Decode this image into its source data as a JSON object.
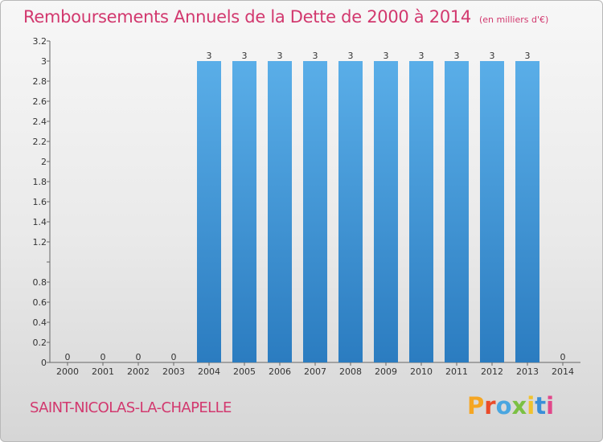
{
  "header": {
    "title": "Remboursements Annuels de la Dette de 2000 à 2014",
    "unit": "(en milliers d'€)"
  },
  "footer": {
    "commune": "SAINT-NICOLAS-LA-CHAPELLE",
    "logo_letters": [
      "P",
      "r",
      "o",
      "x",
      "i",
      "t",
      "i"
    ]
  },
  "chart_data": {
    "type": "bar",
    "title": "Remboursements Annuels de la Dette de 2000 à 2014",
    "subtitle": "(en milliers d'€)",
    "categories": [
      "2000",
      "2001",
      "2002",
      "2003",
      "2004",
      "2005",
      "2006",
      "2007",
      "2008",
      "2009",
      "2010",
      "2011",
      "2012",
      "2013",
      "2014"
    ],
    "values": [
      0,
      0,
      0,
      0,
      3,
      3,
      3,
      3,
      3,
      3,
      3,
      3,
      3,
      3,
      0
    ],
    "data_labels": [
      "0",
      "0",
      "0",
      "0",
      "3",
      "3",
      "3",
      "3",
      "3",
      "3",
      "3",
      "3",
      "3",
      "3",
      "0"
    ],
    "y_ticks": [
      0,
      0.2,
      0.4,
      0.6,
      0.8,
      1.0,
      1.2,
      1.4,
      1.6,
      1.8,
      2,
      2.2,
      2.4,
      2.6,
      2.8,
      3,
      3.2
    ],
    "y_tick_labels": [
      "0",
      "0.2",
      "0.4",
      "0.6",
      "0.8",
      "",
      "1.2",
      "1.4",
      "1.6",
      "1.8",
      "2",
      "2.2",
      "2.4",
      "2.6",
      "2.8",
      "3",
      "3.2"
    ],
    "ylim": [
      0,
      3.2
    ],
    "xlabel": "",
    "ylabel": "",
    "grid": false,
    "colors": {
      "bar_top": "#5aaee8",
      "bar_bottom": "#2b7cc0",
      "title": "#d2386e"
    }
  }
}
